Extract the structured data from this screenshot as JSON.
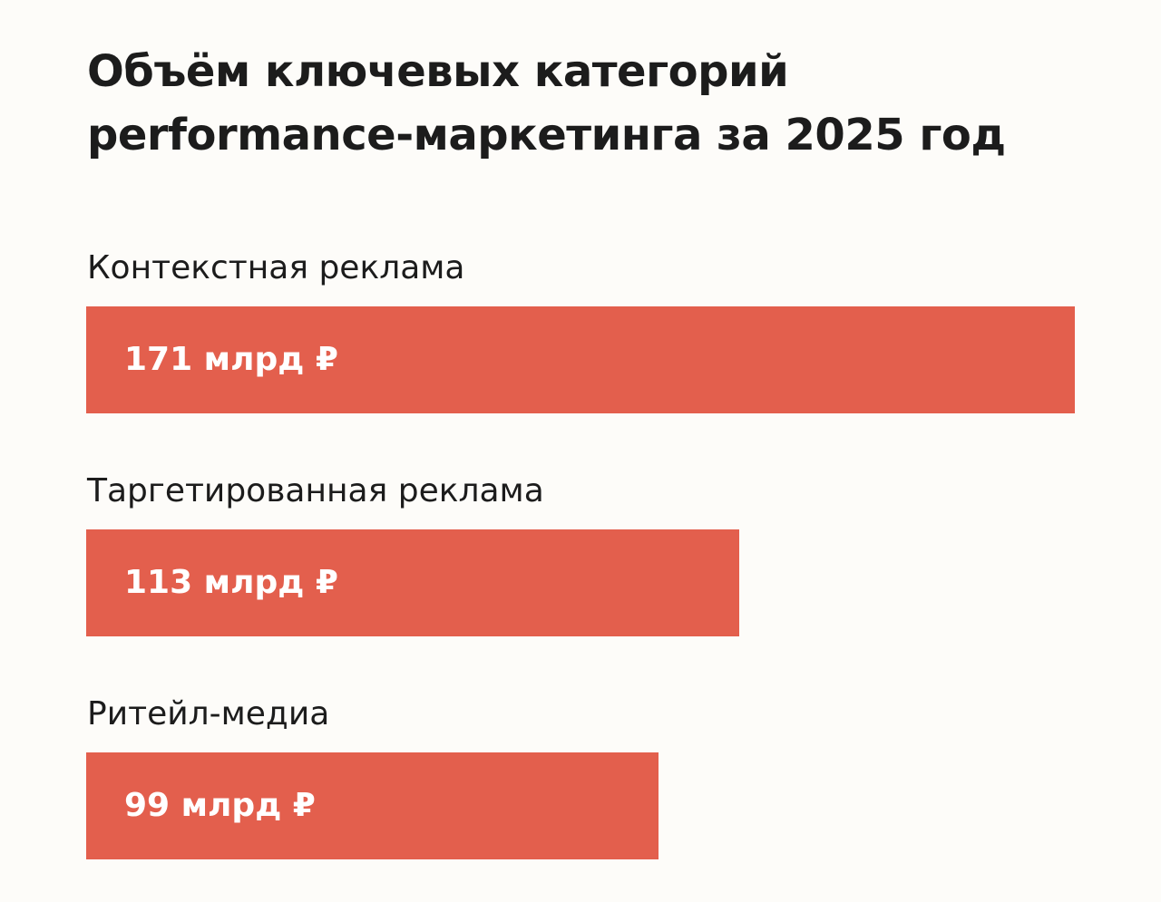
{
  "chart_data": {
    "type": "bar",
    "orientation": "horizontal",
    "title_lines": [
      "Объём ключевых категорий",
      "performance-маркетинга за 2025 год"
    ],
    "categories": [
      "Контекстная реклама",
      "Таргетированная реклама",
      "Ритейл-медиа"
    ],
    "values": [
      171,
      113,
      99
    ],
    "data_labels": [
      "171 млрд ₽",
      "113 млрд ₽",
      "99 млрд ₽"
    ],
    "xlim": [
      0,
      171
    ],
    "grid": false,
    "legend": "none"
  },
  "colors": {
    "bar": "#e35f4d",
    "bar_label": "#ffffff",
    "text": "#1c1c1c",
    "background": "#fdfcf9"
  }
}
